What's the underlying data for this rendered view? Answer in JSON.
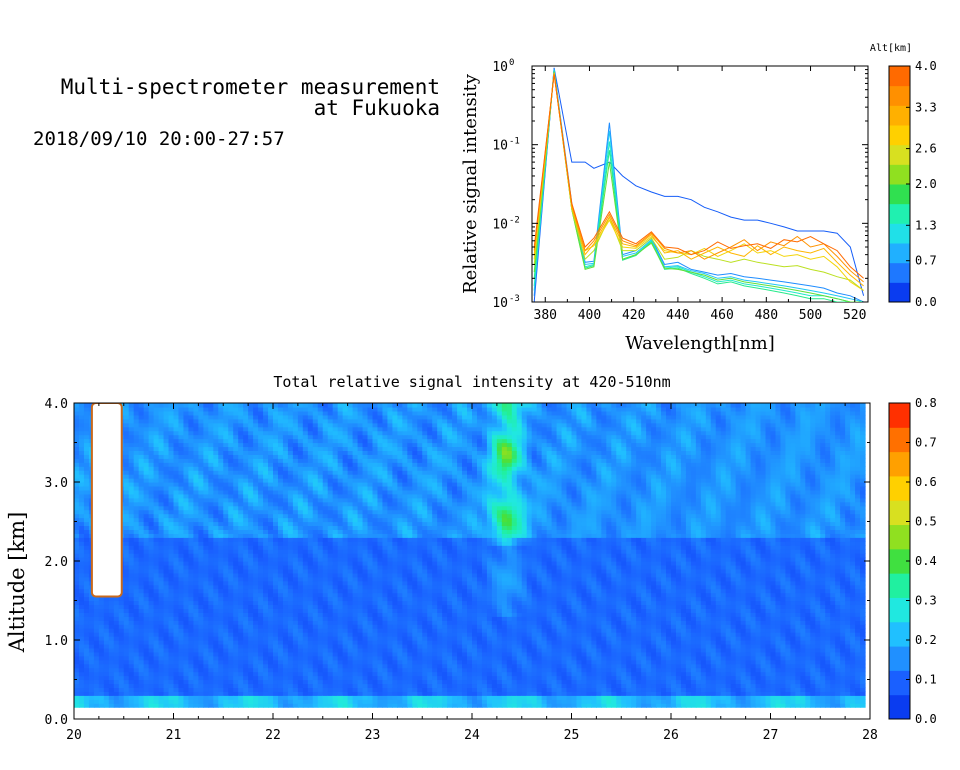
{
  "header": {
    "title_line1": "Multi-spectrometer measurement",
    "title_line2": "at Fukuoka",
    "datetime": "2018/09/10 20:00-27:57"
  },
  "colors": {
    "alt_scale": [
      "#0a3cf0",
      "#1e78ff",
      "#20b0ff",
      "#20e0e8",
      "#20f0b0",
      "#30e050",
      "#90e020",
      "#d8e020",
      "#ffd000",
      "#ffb000",
      "#ff9000",
      "#ff6a00"
    ],
    "intensity_scale": [
      "#0a3cf0",
      "#1a60ff",
      "#2090ff",
      "#20c0ff",
      "#20e8e0",
      "#20f0a0",
      "#40e040",
      "#90e020",
      "#d8e020",
      "#ffd000",
      "#ffa000",
      "#ff7000",
      "#ff3000"
    ]
  },
  "chart_data": [
    {
      "type": "line",
      "title": "",
      "xlabel": "Wavelength[nm]",
      "ylabel": "Relative signal intensity",
      "yscale": "log",
      "xlim": [
        374,
        526
      ],
      "ylim": [
        0.001,
        1
      ],
      "xticks": [
        "380",
        "400",
        "420",
        "440",
        "460",
        "480",
        "500",
        "520"
      ],
      "yticks": [
        "10",
        "10",
        "10",
        "10"
      ],
      "yticks_exp": [
        "-3",
        "-2",
        "-1",
        "0"
      ],
      "colorbar": {
        "label": "Alt[km]",
        "ticks": [
          "0.0",
          "0.7",
          "1.3",
          "2.0",
          "2.6",
          "3.3",
          "4.0"
        ],
        "range": [
          0,
          4
        ]
      },
      "x": [
        375,
        384,
        392,
        398,
        402,
        409,
        415,
        421,
        428,
        434,
        440,
        446,
        452,
        458,
        464,
        470,
        476,
        482,
        488,
        494,
        500,
        506,
        512,
        518,
        524
      ],
      "series": [
        {
          "altitude": 0.2,
          "values": [
            0.001,
            0.95,
            0.06,
            0.06,
            0.05,
            0.06,
            0.04,
            0.03,
            0.025,
            0.022,
            0.022,
            0.02,
            0.016,
            0.014,
            0.012,
            0.011,
            0.011,
            0.01,
            0.009,
            0.008,
            0.008,
            0.008,
            0.0075,
            0.005,
            0.0012
          ]
        },
        {
          "altitude": 0.5,
          "values": [
            0.0012,
            0.92,
            0.018,
            0.0032,
            0.0033,
            0.19,
            0.004,
            0.0045,
            0.0065,
            0.003,
            0.0032,
            0.0026,
            0.0024,
            0.0022,
            0.0023,
            0.0021,
            0.002,
            0.0019,
            0.0018,
            0.0017,
            0.0016,
            0.0015,
            0.0013,
            0.0012,
            0.001
          ]
        },
        {
          "altitude": 0.9,
          "values": [
            0.0014,
            0.9,
            0.017,
            0.003,
            0.0031,
            0.15,
            0.0038,
            0.0042,
            0.0062,
            0.0028,
            0.0029,
            0.0025,
            0.0023,
            0.002,
            0.0021,
            0.0019,
            0.0018,
            0.0017,
            0.0016,
            0.0015,
            0.0014,
            0.0013,
            0.0012,
            0.0011,
            0.001
          ]
        },
        {
          "altitude": 1.3,
          "values": [
            0.0016,
            0.88,
            0.016,
            0.0028,
            0.003,
            0.11,
            0.0035,
            0.004,
            0.006,
            0.0027,
            0.0028,
            0.0024,
            0.0021,
            0.0018,
            0.0019,
            0.0017,
            0.0016,
            0.0015,
            0.0014,
            0.0013,
            0.0012,
            0.0012,
            0.0011,
            0.001,
            0.001
          ]
        },
        {
          "altitude": 1.6,
          "values": [
            0.002,
            0.86,
            0.015,
            0.0027,
            0.0029,
            0.085,
            0.0034,
            0.0039,
            0.0058,
            0.0026,
            0.0027,
            0.0023,
            0.002,
            0.0017,
            0.0018,
            0.0016,
            0.0015,
            0.0014,
            0.0013,
            0.0012,
            0.0011,
            0.0011,
            0.001,
            0.001,
            0.001
          ]
        },
        {
          "altitude": 2.0,
          "values": [
            0.0024,
            0.84,
            0.015,
            0.0026,
            0.0028,
            0.06,
            0.0035,
            0.004,
            0.0056,
            0.0027,
            0.0026,
            0.0024,
            0.0022,
            0.0019,
            0.002,
            0.0018,
            0.0017,
            0.0016,
            0.0015,
            0.0014,
            0.0013,
            0.0012,
            0.0011,
            0.001,
            0.001
          ]
        },
        {
          "altitude": 2.4,
          "values": [
            0.003,
            0.82,
            0.015,
            0.0035,
            0.0045,
            0.012,
            0.0045,
            0.0045,
            0.0065,
            0.0035,
            0.0037,
            0.0045,
            0.0038,
            0.0035,
            0.0032,
            0.0035,
            0.0032,
            0.003,
            0.0028,
            0.0029,
            0.0026,
            0.0024,
            0.0021,
            0.0019,
            0.0014
          ]
        },
        {
          "altitude": 2.8,
          "values": [
            0.0035,
            0.82,
            0.016,
            0.0045,
            0.0052,
            0.011,
            0.005,
            0.0048,
            0.0068,
            0.0045,
            0.0042,
            0.004,
            0.0048,
            0.0038,
            0.0045,
            0.0055,
            0.0042,
            0.0045,
            0.0038,
            0.004,
            0.0035,
            0.0038,
            0.0028,
            0.0018,
            0.0014
          ]
        },
        {
          "altitude": 3.2,
          "values": [
            0.004,
            0.8,
            0.016,
            0.004,
            0.0055,
            0.012,
            0.0055,
            0.005,
            0.0072,
            0.0042,
            0.0045,
            0.0035,
            0.0042,
            0.005,
            0.0042,
            0.0038,
            0.0052,
            0.004,
            0.005,
            0.0045,
            0.0042,
            0.0048,
            0.0032,
            0.0022,
            0.0016
          ]
        },
        {
          "altitude": 3.6,
          "values": [
            0.0045,
            0.8,
            0.017,
            0.0045,
            0.006,
            0.013,
            0.006,
            0.0052,
            0.0075,
            0.0048,
            0.0042,
            0.0045,
            0.0035,
            0.0042,
            0.005,
            0.0062,
            0.0045,
            0.0058,
            0.0052,
            0.0068,
            0.005,
            0.0055,
            0.0038,
            0.0025,
            0.0018
          ]
        },
        {
          "altitude": 4.0,
          "values": [
            0.005,
            0.78,
            0.018,
            0.005,
            0.0065,
            0.014,
            0.0065,
            0.0055,
            0.0078,
            0.005,
            0.0048,
            0.004,
            0.0045,
            0.0058,
            0.0048,
            0.0052,
            0.0055,
            0.0048,
            0.0062,
            0.0058,
            0.0068,
            0.0055,
            0.0045,
            0.0028,
            0.002
          ]
        }
      ]
    },
    {
      "type": "heatmap",
      "title": "Total relative signal intensity at 420-510nm",
      "xlabel": "",
      "ylabel": "Altitude [km]",
      "xlim": [
        20,
        28
      ],
      "ylim": [
        0,
        4
      ],
      "data_end_x": 27.95,
      "xticks": [
        "20",
        "21",
        "22",
        "23",
        "24",
        "25",
        "26",
        "27",
        "28"
      ],
      "yticks": [
        "0.0",
        "1.0",
        "2.0",
        "3.0",
        "4.0"
      ],
      "colorbar": {
        "ticks": [
          "0.0",
          "0.1",
          "0.2",
          "0.3",
          "0.4",
          "0.5",
          "0.6",
          "0.7",
          "0.8"
        ],
        "range": [
          0,
          0.8
        ]
      },
      "background_level": 0.08,
      "features": [
        {
          "t0": 20.18,
          "t1": 20.48,
          "a0": 1.55,
          "a1": 4.0,
          "value": 0.8,
          "saturated": true
        },
        {
          "t0": 24.1,
          "t1": 24.6,
          "a0": 1.3,
          "a1": 4.0,
          "value": 0.35
        },
        {
          "t0": 20.0,
          "t1": 27.8,
          "a0": 0.15,
          "a1": 0.3,
          "value": 0.25
        },
        {
          "t0": 20.0,
          "t1": 27.8,
          "a0": 2.5,
          "a1": 4.0,
          "value": 0.15
        }
      ]
    }
  ]
}
